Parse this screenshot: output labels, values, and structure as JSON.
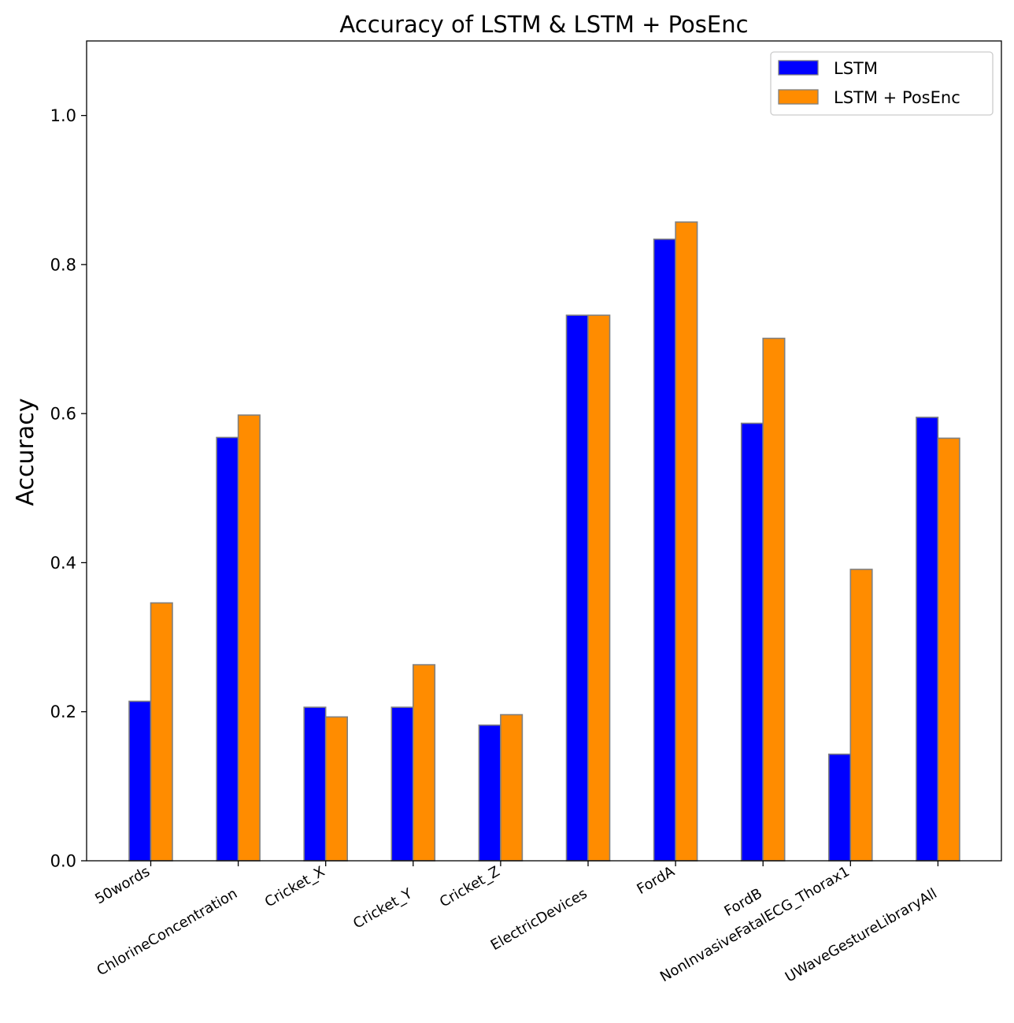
{
  "chart_data": {
    "type": "bar",
    "title": "Accuracy of LSTM & LSTM + PosEnc",
    "xlabel": "",
    "ylabel": "Accuracy",
    "ylim": [
      0,
      1.1
    ],
    "yticks": [
      "0.0",
      "0.2",
      "0.4",
      "0.6",
      "0.8",
      "1.0"
    ],
    "ytick_values": [
      0,
      0.2,
      0.4,
      0.6,
      0.8,
      1.0
    ],
    "grid": false,
    "legend_position": "top-right",
    "categories": [
      "50words",
      "ChlorineConcentration",
      "Cricket_X",
      "Cricket_Y",
      "Cricket_Z",
      "ElectricDevices",
      "FordA",
      "FordB",
      "NonInvasiveFatalECG_Thorax1",
      "UWaveGestureLibraryAll"
    ],
    "series": [
      {
        "name": "LSTM",
        "color": "#0000ff",
        "values": [
          0.214,
          0.568,
          0.206,
          0.206,
          0.182,
          0.732,
          0.834,
          0.587,
          0.143,
          0.595
        ]
      },
      {
        "name": "LSTM + PosEnc",
        "color": "#ff8c00",
        "values": [
          0.346,
          0.598,
          0.193,
          0.263,
          0.196,
          0.732,
          0.857,
          0.701,
          0.391,
          0.567
        ]
      }
    ],
    "bar_edge_color": "#808080"
  }
}
